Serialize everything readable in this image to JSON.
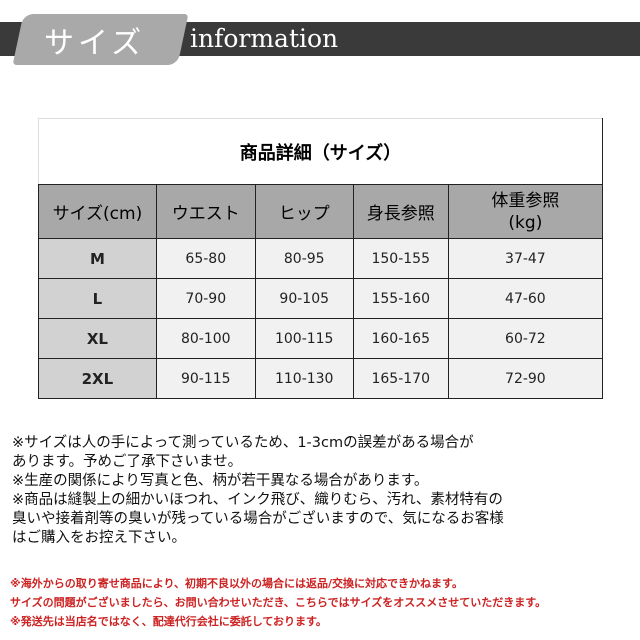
{
  "banner": {
    "tab": "サイズ",
    "title": "information"
  },
  "table": {
    "title": "商品詳細（サイズ）",
    "headers": [
      "サイズ(cm)",
      "ウエスト",
      "ヒップ",
      "身長参照",
      "体重参照\n(kg)"
    ],
    "rows": [
      [
        "M",
        "65-80",
        "80-95",
        "150-155",
        "37-47"
      ],
      [
        "L",
        "70-90",
        "90-105",
        "155-160",
        "47-60"
      ],
      [
        "XL",
        "80-100",
        "100-115",
        "160-165",
        "60-72"
      ],
      [
        "2XL",
        "90-115",
        "110-130",
        "165-170",
        "72-90"
      ]
    ]
  },
  "notes": [
    "※サイズは人の手によって測っているため、1-3cmの誤差がある場合が",
    "あります。予めご了承下さいませ。",
    "※生産の関係により写真と色、柄が若干異なる場合があります。",
    "※商品は縫製上の細かいほつれ、インク飛び、織りむら、汚れ、素材特有の",
    "臭いや接着剤等の臭いが残っている場合がございますので、気になるお客様",
    "はご購入をお控え下さい。"
  ],
  "red_notes": [
    "※海外からの取り寄せ商品により、初期不良以外の場合には返品/交換に対応できかねます。",
    "サイズの問題がございましたら、お問い合わせいただき、こちらではサイズをオススメさせていただきます。",
    "※発送先は当店名ではなく、配達代行会社に委託しております。"
  ],
  "colors": {
    "banner": "#3a3a3a",
    "tab": "#a9a9a9",
    "header": "#a8a8a8",
    "note_red": "#cc2222"
  }
}
